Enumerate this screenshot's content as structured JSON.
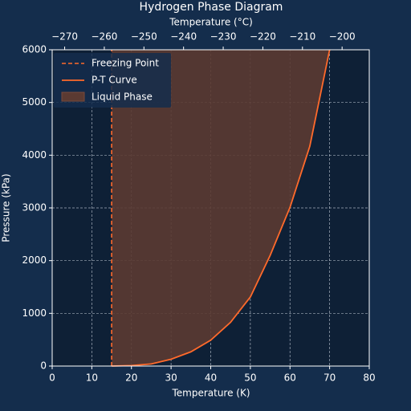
{
  "chart_data": {
    "type": "phase",
    "title": "Hydrogen Phase Diagram",
    "x_label": "Temperature (K)",
    "y_label": "Pressure (kPa)",
    "x2_label": "Temperature (°C)",
    "xlim": [
      0,
      80
    ],
    "xticks": [
      0,
      10,
      20,
      30,
      40,
      50,
      60,
      70,
      80
    ],
    "ylim": [
      0,
      6000
    ],
    "yticks": [
      0,
      1000,
      2000,
      3000,
      4000,
      5000,
      6000
    ],
    "x2lim": [
      -273.15,
      -193.15
    ],
    "x2ticks": [
      {
        "value": -270,
        "label": "−270"
      },
      {
        "value": -260,
        "label": "−260"
      },
      {
        "value": -250,
        "label": "−250"
      },
      {
        "value": -240,
        "label": "−240"
      },
      {
        "value": -230,
        "label": "−230"
      },
      {
        "value": -220,
        "label": "−220"
      },
      {
        "value": -210,
        "label": "−210"
      },
      {
        "value": -200,
        "label": "−200"
      }
    ],
    "grid": true,
    "legend": "upper left",
    "freezing": {
      "name": "Freezing Point",
      "x": 15,
      "color": "#ff6a2b"
    },
    "curve": {
      "name": "P-T Curve",
      "color": "#ff6a2b",
      "x": [
        15,
        20,
        25,
        30,
        35,
        40,
        45,
        50,
        55,
        60,
        65,
        70
      ],
      "values": [
        0,
        10,
        40,
        130,
        270,
        490,
        830,
        1310,
        2100,
        3010,
        4170,
        6000
      ]
    },
    "fill": {
      "name": "Liquid Phase",
      "color": "#5b3a32"
    }
  }
}
